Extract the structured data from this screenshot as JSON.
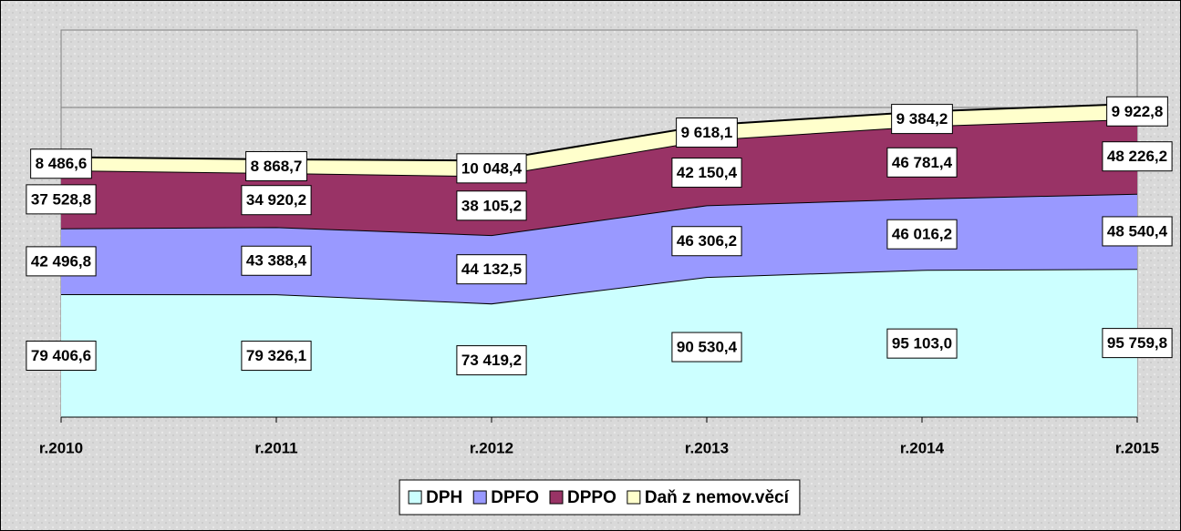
{
  "chart_data": {
    "type": "stacked_area",
    "categories": [
      "r.2010",
      "r.2011",
      "r.2012",
      "r.2013",
      "r.2014",
      "r.2015"
    ],
    "series": [
      {
        "name": "DPH",
        "color": "#ccffff",
        "values": [
          79406.6,
          79326.1,
          73419.2,
          90530.4,
          95103.0,
          95759.8
        ],
        "value_labels": [
          "79 406,6",
          "79 326,1",
          "73 419,2",
          "90 530,4",
          "95 103,0",
          "95 759,8"
        ]
      },
      {
        "name": "DPFO",
        "color": "#9999ff",
        "values": [
          42496.8,
          43388.4,
          44132.5,
          46306.2,
          46016.2,
          48540.4
        ],
        "value_labels": [
          "42 496,8",
          "43 388,4",
          "44 132,5",
          "46 306,2",
          "46 016,2",
          "48 540,4"
        ]
      },
      {
        "name": "DPPO",
        "color": "#993366",
        "values": [
          37528.8,
          34920.2,
          38105.2,
          42150.4,
          46781.4,
          48226.2
        ],
        "value_labels": [
          "37 528,8",
          "34 920,2",
          "38 105,2",
          "42 150,4",
          "46 781,4",
          "48 226,2"
        ]
      },
      {
        "name": "Daň z nemov.věcí",
        "color": "#ffffcc",
        "values": [
          8486.6,
          8868.7,
          10048.4,
          9618.1,
          9384.2,
          9922.8
        ],
        "value_labels": [
          "8 486,6",
          "8 868,7",
          "10 048,4",
          "9 618,1",
          "9 384,2",
          "9 922,8"
        ]
      }
    ],
    "ylim": [
      0,
      250000
    ]
  }
}
